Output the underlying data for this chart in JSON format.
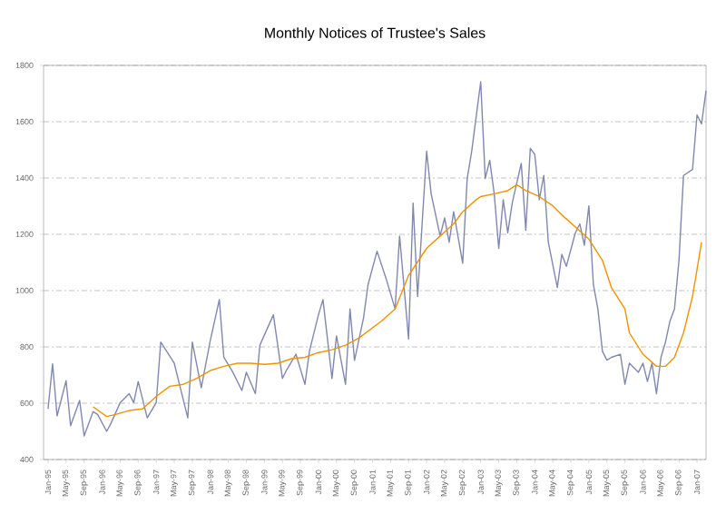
{
  "chart_data": {
    "type": "line",
    "title": "Monthly Notices of Trustee's Sales",
    "xlim": [
      "1994-12",
      "2007-03"
    ],
    "ylim": [
      400,
      1800
    ],
    "yticks": [
      400,
      600,
      800,
      1000,
      1200,
      1400,
      1600,
      1800
    ],
    "xticks": [
      {
        "value": "1995-01",
        "label": "Jan-95"
      },
      {
        "value": "1995-05",
        "label": "May-95"
      },
      {
        "value": "1995-09",
        "label": "Sep-95"
      },
      {
        "value": "1996-01",
        "label": "Jan-96"
      },
      {
        "value": "1996-05",
        "label": "May-96"
      },
      {
        "value": "1996-09",
        "label": "Sep-96"
      },
      {
        "value": "1997-01",
        "label": "Jan-97"
      },
      {
        "value": "1997-05",
        "label": "May-97"
      },
      {
        "value": "1997-09",
        "label": "Sep-97"
      },
      {
        "value": "1998-01",
        "label": "Jan-98"
      },
      {
        "value": "1998-05",
        "label": "May-98"
      },
      {
        "value": "1998-09",
        "label": "Sep-98"
      },
      {
        "value": "1999-01",
        "label": "Jan-99"
      },
      {
        "value": "1999-05",
        "label": "May-99"
      },
      {
        "value": "1999-09",
        "label": "Sep-99"
      },
      {
        "value": "2000-01",
        "label": "Jan-00"
      },
      {
        "value": "2000-05",
        "label": "May-00"
      },
      {
        "value": "2000-09",
        "label": "Sep-00"
      },
      {
        "value": "2001-01",
        "label": "Jan-01"
      },
      {
        "value": "2001-05",
        "label": "May-01"
      },
      {
        "value": "2001-09",
        "label": "Sep-01"
      },
      {
        "value": "2002-01",
        "label": "Jan-02"
      },
      {
        "value": "2002-05",
        "label": "May-02"
      },
      {
        "value": "2002-09",
        "label": "Sep-02"
      },
      {
        "value": "2003-01",
        "label": "Jan-03"
      },
      {
        "value": "2003-05",
        "label": "May-03"
      },
      {
        "value": "2003-09",
        "label": "Sep-03"
      },
      {
        "value": "2004-01",
        "label": "Jan-04"
      },
      {
        "value": "2004-05",
        "label": "May-04"
      },
      {
        "value": "2004-09",
        "label": "Sep-04"
      },
      {
        "value": "2005-01",
        "label": "Jan-05"
      },
      {
        "value": "2005-05",
        "label": "May-05"
      },
      {
        "value": "2005-09",
        "label": "Sep-05"
      },
      {
        "value": "2006-01",
        "label": "Jan-06"
      },
      {
        "value": "2006-05",
        "label": "May-06"
      },
      {
        "value": "2006-09",
        "label": "Sep-06"
      },
      {
        "value": "2007-01",
        "label": "Jan-07"
      }
    ],
    "grid": "y",
    "marker": "none",
    "line_style": "solid",
    "series": [
      {
        "color": "#8088b0",
        "x": [
          "1995-01",
          "1995-02",
          "1995-03",
          "1995-05",
          "1995-06",
          "1995-08",
          "1995-09",
          "1995-11",
          "1995-12",
          "1996-02",
          "1996-03",
          "1996-05",
          "1996-07",
          "1996-08",
          "1996-09",
          "1996-11",
          "1997-01",
          "1997-02",
          "1997-05",
          "1997-06",
          "1997-08",
          "1997-09",
          "1997-11",
          "1998-01",
          "1998-03",
          "1998-04",
          "1998-06",
          "1998-08",
          "1998-09",
          "1998-11",
          "1998-12",
          "1999-03",
          "1999-05",
          "1999-06",
          "1999-08",
          "1999-10",
          "1999-11",
          "2000-01",
          "2000-02",
          "2000-04",
          "2000-05",
          "2000-07",
          "2000-08",
          "2000-09",
          "2000-11",
          "2000-12",
          "2001-02",
          "2001-04",
          "2001-06",
          "2001-07",
          "2001-09",
          "2001-10",
          "2001-11",
          "2002-01",
          "2002-02",
          "2002-04",
          "2002-05",
          "2002-06",
          "2002-07",
          "2002-09",
          "2002-10",
          "2002-11",
          "2003-01",
          "2003-02",
          "2003-03",
          "2003-04",
          "2003-05",
          "2003-06",
          "2003-07",
          "2003-08",
          "2003-10",
          "2003-11",
          "2003-12",
          "2004-01",
          "2004-02",
          "2004-03",
          "2004-04",
          "2004-06",
          "2004-07",
          "2004-08",
          "2004-10",
          "2004-11",
          "2004-12",
          "2005-01",
          "2005-02",
          "2005-03",
          "2005-04",
          "2005-05",
          "2005-06",
          "2005-08",
          "2005-09",
          "2005-10",
          "2005-12",
          "2006-01",
          "2006-02",
          "2006-03",
          "2006-04",
          "2006-05",
          "2006-06",
          "2006-07",
          "2006-08",
          "2006-09",
          "2006-10",
          "2006-12",
          "2007-01",
          "2007-02",
          "2007-03"
        ],
        "values": [
          580,
          740,
          555,
          680,
          520,
          610,
          484,
          570,
          560,
          500,
          530,
          602,
          634,
          602,
          677,
          548,
          602,
          817,
          742,
          677,
          548,
          817,
          655,
          823,
          968,
          763,
          710,
          645,
          710,
          634,
          806,
          914,
          688,
          720,
          774,
          667,
          785,
          914,
          968,
          688,
          839,
          667,
          935,
          752,
          903,
          1021,
          1140,
          1043,
          935,
          1194,
          828,
          1311,
          979,
          1495,
          1344,
          1194,
          1258,
          1172,
          1280,
          1097,
          1398,
          1495,
          1742,
          1398,
          1463,
          1344,
          1150,
          1323,
          1205,
          1312,
          1452,
          1215,
          1505,
          1484,
          1323,
          1409,
          1172,
          1011,
          1129,
          1086,
          1205,
          1237,
          1161,
          1301,
          1021,
          935,
          785,
          753,
          763,
          774,
          667,
          742,
          710,
          742,
          677,
          742,
          634,
          763,
          817,
          892,
          935,
          1108,
          1409,
          1430,
          1624,
          1592,
          1710
        ]
      },
      {
        "color": "#f39200",
        "x": [
          "1995-11",
          "1996-02",
          "1996-04",
          "1996-07",
          "1996-10",
          "1997-01",
          "1997-04",
          "1997-07",
          "1997-10",
          "1998-01",
          "1998-04",
          "1998-07",
          "1998-10",
          "1999-01",
          "1999-04",
          "1999-07",
          "1999-10",
          "2000-01",
          "2000-04",
          "2000-07",
          "2000-10",
          "2001-03",
          "2001-06",
          "2001-09",
          "2002-01",
          "2002-04",
          "2002-07",
          "2002-09",
          "2002-12",
          "2003-01",
          "2003-04",
          "2003-07",
          "2003-09",
          "2003-11",
          "2004-02",
          "2004-05",
          "2004-07",
          "2004-10",
          "2005-01",
          "2005-04",
          "2005-06",
          "2005-09",
          "2005-10",
          "2006-01",
          "2006-04",
          "2006-06",
          "2006-08",
          "2006-10",
          "2006-12",
          "2007-02"
        ],
        "values": [
          587,
          553,
          560,
          574,
          580,
          624,
          660,
          667,
          688,
          716,
          731,
          742,
          742,
          738,
          742,
          758,
          763,
          780,
          790,
          806,
          832,
          892,
          935,
          1054,
          1150,
          1194,
          1237,
          1280,
          1323,
          1334,
          1344,
          1355,
          1376,
          1355,
          1334,
          1301,
          1269,
          1226,
          1183,
          1108,
          1011,
          935,
          850,
          774,
          731,
          731,
          763,
          850,
          979,
          1172
        ]
      }
    ]
  }
}
